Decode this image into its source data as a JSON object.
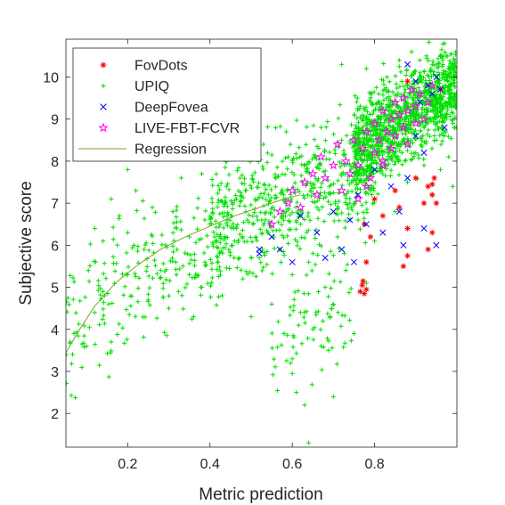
{
  "chart_data": {
    "type": "scatter",
    "xlabel": "Metric prediction",
    "ylabel": "Subjective score",
    "xlim": [
      0.05,
      1.0
    ],
    "ylim": [
      1.2,
      10.9
    ],
    "xticks": [
      0.2,
      0.4,
      0.6,
      0.8
    ],
    "xtick_labels": [
      "0.2",
      "0.4",
      "0.6",
      "0.8"
    ],
    "yticks": [
      2,
      3,
      4,
      5,
      6,
      7,
      8,
      9,
      10
    ],
    "ytick_labels": [
      "2",
      "3",
      "4",
      "5",
      "6",
      "7",
      "8",
      "9",
      "10"
    ],
    "grid": false,
    "legend_position": "top-left",
    "series": [
      {
        "name": "UPIQ",
        "marker": "plus",
        "color": "#00e000",
        "points": [
          [
            0.06,
            3.7
          ],
          [
            0.1,
            3.6
          ],
          [
            0.12,
            4.4
          ],
          [
            0.14,
            4.9
          ],
          [
            0.16,
            3.7
          ],
          [
            0.12,
            6.4
          ],
          [
            0.14,
            6.1
          ],
          [
            0.16,
            7.1
          ],
          [
            0.18,
            6.7
          ],
          [
            0.2,
            6.3
          ],
          [
            0.22,
            7.3
          ],
          [
            0.2,
            7.8
          ],
          [
            0.24,
            5.9
          ],
          [
            0.26,
            6.9
          ],
          [
            0.25,
            4.7
          ],
          [
            0.28,
            5.4
          ],
          [
            0.3,
            4.5
          ],
          [
            0.32,
            5.9
          ],
          [
            0.31,
            6.8
          ],
          [
            0.33,
            7.6
          ],
          [
            0.35,
            6.2
          ],
          [
            0.36,
            4.3
          ],
          [
            0.38,
            5.0
          ],
          [
            0.38,
            7.7
          ],
          [
            0.4,
            6.5
          ],
          [
            0.42,
            5.6
          ],
          [
            0.43,
            4.8
          ],
          [
            0.44,
            7.4
          ],
          [
            0.46,
            6.1
          ],
          [
            0.47,
            8.2
          ],
          [
            0.48,
            5.2
          ],
          [
            0.49,
            6.6
          ],
          [
            0.5,
            4.3
          ],
          [
            0.51,
            7.1
          ],
          [
            0.52,
            5.7
          ],
          [
            0.53,
            8.4
          ],
          [
            0.54,
            6.3
          ],
          [
            0.55,
            4.6
          ],
          [
            0.56,
            7.6
          ],
          [
            0.57,
            5.9
          ],
          [
            0.58,
            3.9
          ],
          [
            0.58,
            6.8
          ],
          [
            0.59,
            8.1
          ],
          [
            0.6,
            5.3
          ],
          [
            0.6,
            3.3
          ],
          [
            0.61,
            2.5
          ],
          [
            0.62,
            6.5
          ],
          [
            0.62,
            4.4
          ],
          [
            0.63,
            7.9
          ],
          [
            0.63,
            2.2
          ],
          [
            0.64,
            5.6
          ],
          [
            0.64,
            1.3
          ],
          [
            0.65,
            4.0
          ],
          [
            0.66,
            6.9
          ],
          [
            0.67,
            8.8
          ],
          [
            0.67,
            3.6
          ],
          [
            0.68,
            5.0
          ],
          [
            0.69,
            7.4
          ],
          [
            0.7,
            4.6
          ],
          [
            0.7,
            2.4
          ],
          [
            0.71,
            6.2
          ],
          [
            0.72,
            8.5
          ],
          [
            0.72,
            10.3
          ],
          [
            0.73,
            5.4
          ],
          [
            0.74,
            7.0
          ],
          [
            0.75,
            3.9
          ],
          [
            0.75,
            9.1
          ],
          [
            0.76,
            6.6
          ],
          [
            0.77,
            8.0
          ],
          [
            0.78,
            5.1
          ],
          [
            0.78,
            10.2
          ],
          [
            0.79,
            7.3
          ],
          [
            0.8,
            8.8
          ],
          [
            0.8,
            6.1
          ],
          [
            0.81,
            9.6
          ],
          [
            0.82,
            7.7
          ],
          [
            0.83,
            10.0
          ],
          [
            0.84,
            8.4
          ],
          [
            0.85,
            9.2
          ],
          [
            0.85,
            6.8
          ],
          [
            0.86,
            10.4
          ],
          [
            0.87,
            8.9
          ],
          [
            0.88,
            7.5
          ],
          [
            0.88,
            9.8
          ],
          [
            0.89,
            10.6
          ],
          [
            0.9,
            8.2
          ],
          [
            0.9,
            9.4
          ],
          [
            0.91,
            10.1
          ],
          [
            0.92,
            7.9
          ],
          [
            0.92,
            8.8
          ],
          [
            0.93,
            9.7
          ],
          [
            0.94,
            10.3
          ],
          [
            0.94,
            7.2
          ],
          [
            0.95,
            8.5
          ],
          [
            0.95,
            9.9
          ],
          [
            0.96,
            10.5
          ],
          [
            0.96,
            7.8
          ],
          [
            0.97,
            9.1
          ],
          [
            0.97,
            10.8
          ],
          [
            0.98,
            8.1
          ],
          [
            0.98,
            9.5
          ],
          [
            0.99,
            10.2
          ],
          [
            0.99,
            7.4
          ],
          [
            0.99,
            8.9
          ]
        ],
        "density": {
          "approx_count": 2000,
          "regions": [
            {
              "x": [
                0.05,
                0.45
              ],
              "y_center_at_x0": 4.0,
              "y_center_at_x1": 6.6,
              "spread": 1.3,
              "weight": 0.12
            },
            {
              "x": [
                0.4,
                0.8
              ],
              "y_center_at_x0": 6.3,
              "y_center_at_x1": 8.0,
              "spread": 1.2,
              "weight": 0.28
            },
            {
              "x": [
                0.55,
                0.75
              ],
              "y_center_at_x0": 4.0,
              "y_center_at_x1": 4.8,
              "spread": 1.2,
              "weight": 0.04
            },
            {
              "x": [
                0.75,
                1.0
              ],
              "y_center_at_x0": 8.3,
              "y_center_at_x1": 9.8,
              "spread": 0.9,
              "weight": 0.56
            }
          ]
        }
      },
      {
        "name": "FovDots",
        "marker": "asterisk",
        "color": "#ff0000",
        "points": [
          [
            0.765,
            4.9
          ],
          [
            0.775,
            4.85
          ],
          [
            0.77,
            5.05
          ],
          [
            0.78,
            4.95
          ],
          [
            0.772,
            5.15
          ],
          [
            0.78,
            5.6
          ],
          [
            0.775,
            6.5
          ],
          [
            0.79,
            6.2
          ],
          [
            0.8,
            7.1
          ],
          [
            0.82,
            6.7
          ],
          [
            0.85,
            7.3
          ],
          [
            0.86,
            6.9
          ],
          [
            0.87,
            5.5
          ],
          [
            0.88,
            5.75
          ],
          [
            0.88,
            6.4
          ],
          [
            0.9,
            7.6
          ],
          [
            0.92,
            7.0
          ],
          [
            0.93,
            7.4
          ],
          [
            0.94,
            7.45
          ],
          [
            0.94,
            7.2
          ],
          [
            0.945,
            7.6
          ],
          [
            0.95,
            7.0
          ],
          [
            0.93,
            5.9
          ],
          [
            0.94,
            6.3
          ],
          [
            0.88,
            9.9
          ],
          [
            0.96,
            9.7
          ]
        ]
      },
      {
        "name": "DeepFovea",
        "marker": "cross",
        "color": "#0000ff",
        "points": [
          [
            0.52,
            5.8
          ],
          [
            0.52,
            5.9
          ],
          [
            0.55,
            6.2
          ],
          [
            0.57,
            5.9
          ],
          [
            0.6,
            5.6
          ],
          [
            0.62,
            6.7
          ],
          [
            0.66,
            6.3
          ],
          [
            0.68,
            5.7
          ],
          [
            0.7,
            6.8
          ],
          [
            0.72,
            5.9
          ],
          [
            0.74,
            6.6
          ],
          [
            0.75,
            5.6
          ],
          [
            0.76,
            7.2
          ],
          [
            0.78,
            6.5
          ],
          [
            0.8,
            7.8
          ],
          [
            0.82,
            6.3
          ],
          [
            0.84,
            7.4
          ],
          [
            0.86,
            6.8
          ],
          [
            0.87,
            6.0
          ],
          [
            0.88,
            7.6
          ],
          [
            0.9,
            8.6
          ],
          [
            0.91,
            9.4
          ],
          [
            0.92,
            8.2
          ],
          [
            0.93,
            9.8
          ],
          [
            0.94,
            9.6
          ],
          [
            0.95,
            10.0
          ],
          [
            0.96,
            9.7
          ],
          [
            0.9,
            9.9
          ],
          [
            0.97,
            8.8
          ],
          [
            0.92,
            6.4
          ],
          [
            0.95,
            6.0
          ],
          [
            0.88,
            10.3
          ]
        ]
      },
      {
        "name": "LIVE-FBT-FCVR",
        "marker": "pentagram",
        "color": "#ff00ff",
        "points": [
          [
            0.55,
            6.5
          ],
          [
            0.57,
            6.8
          ],
          [
            0.59,
            7.0
          ],
          [
            0.6,
            7.3
          ],
          [
            0.62,
            6.9
          ],
          [
            0.63,
            7.5
          ],
          [
            0.65,
            7.7
          ],
          [
            0.66,
            7.2
          ],
          [
            0.67,
            8.1
          ],
          [
            0.68,
            7.6
          ],
          [
            0.7,
            7.9
          ],
          [
            0.71,
            8.4
          ],
          [
            0.72,
            7.3
          ],
          [
            0.73,
            8.0
          ],
          [
            0.74,
            7.7
          ],
          [
            0.75,
            8.5
          ],
          [
            0.76,
            7.9
          ],
          [
            0.77,
            8.3
          ],
          [
            0.78,
            8.7
          ],
          [
            0.79,
            7.6
          ],
          [
            0.8,
            8.9
          ],
          [
            0.8,
            8.2
          ],
          [
            0.81,
            8.5
          ],
          [
            0.82,
            9.2
          ],
          [
            0.82,
            7.9
          ],
          [
            0.83,
            8.7
          ],
          [
            0.84,
            9.0
          ],
          [
            0.84,
            8.3
          ],
          [
            0.85,
            9.4
          ],
          [
            0.85,
            8.6
          ],
          [
            0.86,
            9.1
          ],
          [
            0.87,
            8.8
          ],
          [
            0.87,
            9.5
          ],
          [
            0.88,
            8.4
          ],
          [
            0.88,
            9.2
          ],
          [
            0.89,
            9.7
          ],
          [
            0.9,
            8.9
          ],
          [
            0.9,
            9.3
          ],
          [
            0.91,
            9.6
          ],
          [
            0.92,
            9.0
          ],
          [
            0.93,
            9.4
          ],
          [
            0.94,
            9.8
          ],
          [
            0.78,
            7.4
          ],
          [
            0.76,
            7.1
          ],
          [
            0.82,
            8.0
          ]
        ]
      },
      {
        "name": "Regression",
        "type": "line",
        "color": "#7aa329",
        "points": [
          [
            0.05,
            3.45
          ],
          [
            0.08,
            3.95
          ],
          [
            0.12,
            4.55
          ],
          [
            0.17,
            5.1
          ],
          [
            0.22,
            5.5
          ],
          [
            0.28,
            5.9
          ],
          [
            0.34,
            6.2
          ],
          [
            0.4,
            6.45
          ],
          [
            0.46,
            6.7
          ],
          [
            0.52,
            6.9
          ],
          [
            0.58,
            7.1
          ],
          [
            0.62,
            7.2
          ]
        ]
      }
    ]
  },
  "colors": {
    "UPIQ": "#00e000",
    "FovDots": "#ff0000",
    "DeepFovea": "#0000ff",
    "LIVE-FBT-FCVR": "#ff00ff",
    "Regression": "#7aa329",
    "axis": "#262626"
  }
}
